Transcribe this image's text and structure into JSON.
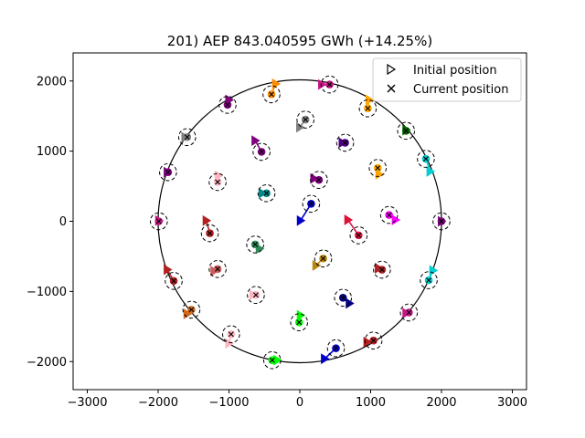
{
  "chart_data": {
    "type": "scatter",
    "title": "201) AEP 843.040595 GWh (+14.25%)",
    "xlabel": "",
    "ylabel": "",
    "xlim": [
      -3200,
      3200
    ],
    "ylim": [
      -2400,
      2400
    ],
    "xticks": [
      -3000,
      -2000,
      -1000,
      0,
      1000,
      2000,
      3000
    ],
    "yticks": [
      -2000,
      -1000,
      0,
      1000,
      2000
    ],
    "grid": false,
    "boundary_circle": {
      "center": [
        0,
        0
      ],
      "radius": 2000
    },
    "marker_circle_radius": 120,
    "legend": {
      "placement": "top-right",
      "entries": [
        {
          "marker": "triangle-right",
          "label": "Initial position"
        },
        {
          "marker": "x",
          "label": "Current position"
        }
      ]
    },
    "turbines": [
      {
        "color": "#ff8c00",
        "initial": [
          -340,
          1960
        ],
        "current": [
          -400,
          1810
        ]
      },
      {
        "color": "#c71585",
        "initial": [
          310,
          1950
        ],
        "current": [
          420,
          1950
        ]
      },
      {
        "color": "#800080",
        "initial": [
          -1000,
          1730
        ],
        "current": [
          -1020,
          1660
        ]
      },
      {
        "color": "#ffa500",
        "initial": [
          980,
          1730
        ],
        "current": [
          960,
          1610
        ]
      },
      {
        "color": "#808080",
        "initial": [
          0,
          1340
        ],
        "current": [
          80,
          1450
        ]
      },
      {
        "color": "#808080",
        "initial": [
          -1620,
          1200
        ],
        "current": [
          -1590,
          1200
        ]
      },
      {
        "color": "#006400",
        "initial": [
          1500,
          1300
        ],
        "current": [
          1500,
          1290
        ]
      },
      {
        "color": "#4b0082",
        "initial": [
          600,
          1120
        ],
        "current": [
          640,
          1120
        ]
      },
      {
        "color": "#800080",
        "initial": [
          -630,
          1150
        ],
        "current": [
          -540,
          990
        ]
      },
      {
        "color": "#00ced1",
        "initial": [
          1840,
          710
        ],
        "current": [
          1780,
          890
        ]
      },
      {
        "color": "#ffa500",
        "initial": [
          1120,
          670
        ],
        "current": [
          1100,
          760
        ]
      },
      {
        "color": "#800080",
        "initial": [
          -1870,
          700
        ],
        "current": [
          -1860,
          700
        ]
      },
      {
        "color": "#ffb6c1",
        "initial": [
          -1150,
          650
        ],
        "current": [
          -1160,
          560
        ]
      },
      {
        "color": "#800080",
        "initial": [
          200,
          610
        ],
        "current": [
          270,
          590
        ]
      },
      {
        "color": "#008b8b",
        "initial": [
          -530,
          400
        ],
        "current": [
          -470,
          400
        ]
      },
      {
        "color": "#0000cd",
        "initial": [
          10,
          10
        ],
        "current": [
          160,
          250
        ]
      },
      {
        "color": "#ff00ff",
        "initial": [
          1350,
          20
        ],
        "current": [
          1260,
          90
        ]
      },
      {
        "color": "#c71585",
        "initial": [
          -1990,
          10
        ],
        "current": [
          -1990,
          0
        ]
      },
      {
        "color": "#800080",
        "initial": [
          2000,
          0
        ],
        "current": [
          2000,
          0
        ]
      },
      {
        "color": "#b22222",
        "initial": [
          -1320,
          10
        ],
        "current": [
          -1270,
          -170
        ]
      },
      {
        "color": "#dc143c",
        "initial": [
          680,
          20
        ],
        "current": [
          830,
          -200
        ]
      },
      {
        "color": "#2e8b57",
        "initial": [
          -570,
          -390
        ],
        "current": [
          -630,
          -330
        ]
      },
      {
        "color": "#b8860b",
        "initial": [
          230,
          -630
        ],
        "current": [
          330,
          -530
        ]
      },
      {
        "color": "#b22222",
        "initial": [
          -1870,
          -690
        ],
        "current": [
          -1780,
          -850
        ]
      },
      {
        "color": "#cd5c5c",
        "initial": [
          -1210,
          -710
        ],
        "current": [
          -1160,
          -680
        ]
      },
      {
        "color": "#b22222",
        "initial": [
          1110,
          -670
        ],
        "current": [
          1160,
          -690
        ]
      },
      {
        "color": "#00ced1",
        "initial": [
          1880,
          -700
        ],
        "current": [
          1820,
          -840
        ]
      },
      {
        "color": "#ffb6c1",
        "initial": [
          -660,
          -1050
        ],
        "current": [
          -620,
          -1050
        ]
      },
      {
        "color": "#00008b",
        "initial": [
          700,
          -1170
        ],
        "current": [
          610,
          -1090
        ]
      },
      {
        "color": "#c71585",
        "initial": [
          1500,
          -1310
        ],
        "current": [
          1540,
          -1300
        ]
      },
      {
        "color": "#d2691e",
        "initial": [
          -1590,
          -1320
        ],
        "current": [
          -1530,
          -1260
        ]
      },
      {
        "color": "#00ff00",
        "initial": [
          10,
          -1340
        ],
        "current": [
          -10,
          -1440
        ]
      },
      {
        "color": "#ffb6c1",
        "initial": [
          -1000,
          -1740
        ],
        "current": [
          -970,
          -1610
        ]
      },
      {
        "color": "#0000cd",
        "initial": [
          350,
          -1960
        ],
        "current": [
          510,
          -1810
        ]
      },
      {
        "color": "#b22222",
        "initial": [
          950,
          -1720
        ],
        "current": [
          1040,
          -1700
        ]
      },
      {
        "color": "#00ff00",
        "initial": [
          -320,
          -1980
        ],
        "current": [
          -390,
          -1980
        ]
      }
    ]
  }
}
